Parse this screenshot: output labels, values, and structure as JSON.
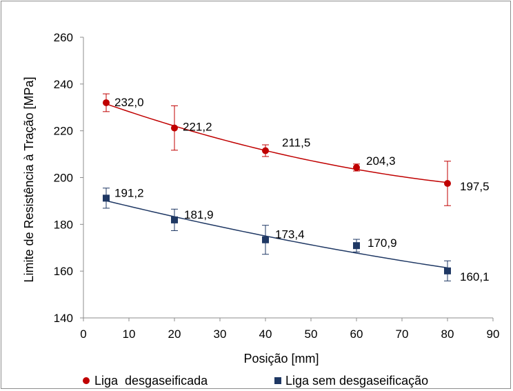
{
  "chart_data": {
    "type": "scatter",
    "xlabel": "Posição [mm]",
    "ylabel": "Limite de Resistência à Tração [MPa]",
    "xlim": [
      0,
      90
    ],
    "ylim": [
      140,
      260
    ],
    "x_ticks": [
      "0",
      "10",
      "20",
      "30",
      "40",
      "50",
      "60",
      "70",
      "80",
      "90"
    ],
    "y_ticks": [
      "140",
      "160",
      "180",
      "200",
      "220",
      "240",
      "260"
    ],
    "grid": false,
    "legend_position": "bottom",
    "series": [
      {
        "name": "Liga  desgaseificada",
        "color": "#c00000",
        "marker": "circle",
        "x": [
          5,
          20,
          40,
          60,
          80
        ],
        "y": [
          232.0,
          221.2,
          211.5,
          204.3,
          197.5
        ],
        "labels": [
          "232,0",
          "221,2",
          "211,5",
          "204,3",
          "197,5"
        ],
        "error": [
          3.8,
          9.5,
          2.5,
          1.5,
          9.5
        ],
        "trendline": true
      },
      {
        "name": "Liga sem desgaseificação",
        "color": "#1f3864",
        "marker": "square",
        "x": [
          5,
          20,
          40,
          60,
          80
        ],
        "y": [
          191.2,
          181.9,
          173.4,
          170.9,
          160.1
        ],
        "labels": [
          "191,2",
          "181,9",
          "173,4",
          "170,9",
          "160,1"
        ],
        "error": [
          4.3,
          4.6,
          6.2,
          2.7,
          4.3
        ],
        "trendline": true
      }
    ]
  }
}
